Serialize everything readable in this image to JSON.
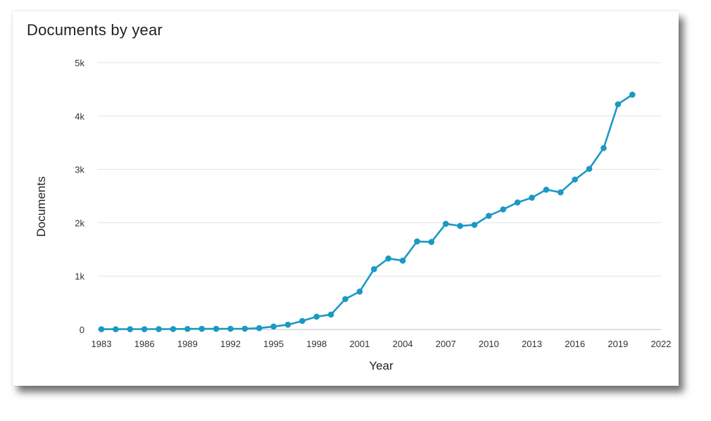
{
  "chart_data": {
    "type": "line",
    "title": "Documents by year",
    "xlabel": "Year",
    "ylabel": "Documents",
    "xlim": [
      1983,
      2022
    ],
    "ylim": [
      0,
      5000
    ],
    "x_ticks": [
      1983,
      1986,
      1989,
      1992,
      1995,
      1998,
      2001,
      2004,
      2007,
      2010,
      2013,
      2016,
      2019,
      2022
    ],
    "x_tick_labels": [
      "1983",
      "1986",
      "1989",
      "1992",
      "1995",
      "1998",
      "2001",
      "2004",
      "2007",
      "2010",
      "2013",
      "2016",
      "2019",
      "2022"
    ],
    "y_ticks": [
      0,
      1000,
      2000,
      3000,
      4000,
      5000
    ],
    "y_tick_labels": [
      "0",
      "1k",
      "2k",
      "3k",
      "4k",
      "5k"
    ],
    "grid": "horizontal",
    "color": "#1a99c4",
    "series": [
      {
        "x": [
          1983,
          1984,
          1985,
          1986,
          1987,
          1988,
          1989,
          1990,
          1991,
          1992,
          1993,
          1994,
          1995,
          1996,
          1997,
          1998,
          1999,
          2000,
          2001,
          2002,
          2003,
          2004,
          2005,
          2006,
          2007,
          2008,
          2009,
          2010,
          2011,
          2012,
          2013,
          2014,
          2015,
          2016,
          2017,
          2018,
          2019,
          2020
        ],
        "y": [
          5,
          5,
          6,
          6,
          7,
          8,
          10,
          12,
          12,
          13,
          15,
          25,
          55,
          90,
          160,
          240,
          280,
          570,
          710,
          1130,
          1330,
          1290,
          1650,
          1640,
          1980,
          1940,
          1960,
          2130,
          2250,
          2380,
          2470,
          2620,
          2570,
          2810,
          3010,
          3400,
          4220,
          4400
        ]
      }
    ]
  }
}
